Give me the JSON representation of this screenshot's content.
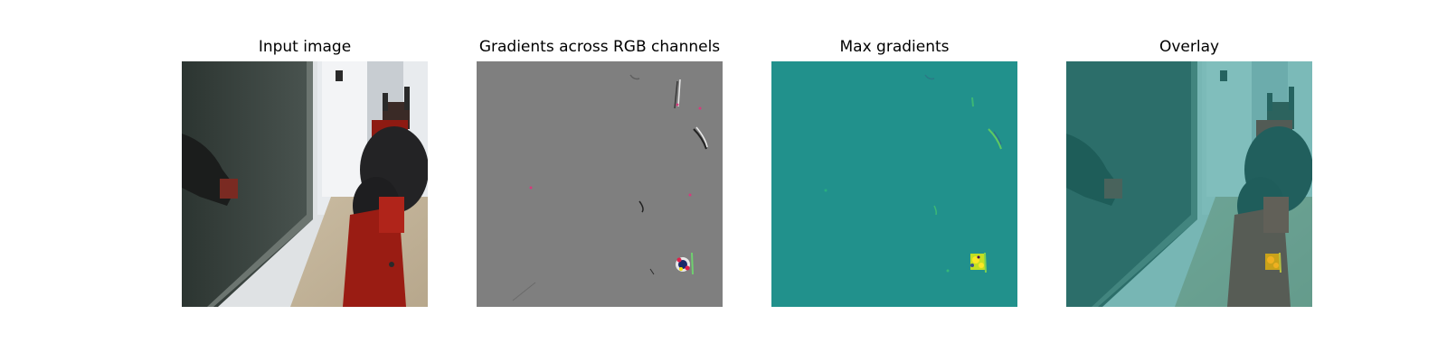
{
  "panels": [
    {
      "title": "Input image"
    },
    {
      "title": "Gradients across RGB channels"
    },
    {
      "title": "Max gradients"
    },
    {
      "title": "Overlay"
    }
  ],
  "colors": {
    "gradient_gray": "#7f7f7f",
    "max_gradient_teal": "#21918c",
    "max_gradient_yellow": "#fde725",
    "robot_red": "#8e1a12"
  }
}
